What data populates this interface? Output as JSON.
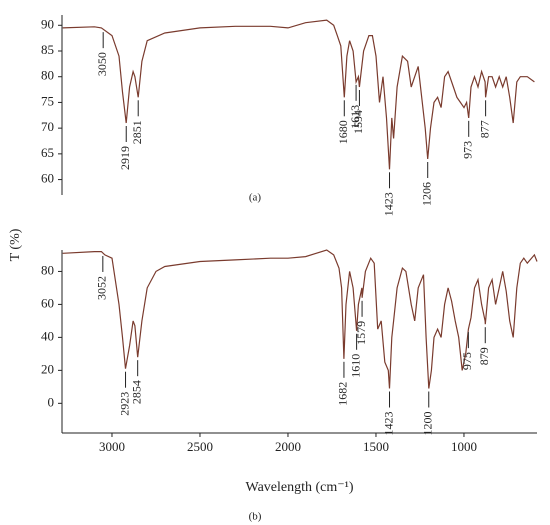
{
  "chart_data": [
    {
      "type": "line",
      "label": "(a)",
      "color": "#7a3b2e",
      "xlim": [
        3284,
        585
      ],
      "ylim": [
        57,
        92
      ],
      "yticks": [
        60,
        65,
        70,
        75,
        80,
        85,
        90
      ],
      "x": [
        3280,
        3100,
        3060,
        3000,
        2960,
        2940,
        2919,
        2900,
        2880,
        2870,
        2851,
        2830,
        2800,
        2700,
        2500,
        2300,
        2100,
        2000,
        1900,
        1780,
        1740,
        1720,
        1700,
        1680,
        1665,
        1650,
        1630,
        1613,
        1600,
        1594,
        1570,
        1540,
        1520,
        1500,
        1480,
        1460,
        1440,
        1423,
        1410,
        1400,
        1380,
        1350,
        1320,
        1300,
        1280,
        1260,
        1240,
        1220,
        1206,
        1190,
        1170,
        1150,
        1130,
        1110,
        1090,
        1060,
        1040,
        1020,
        1000,
        985,
        973,
        960,
        940,
        920,
        900,
        880,
        877,
        860,
        840,
        820,
        800,
        780,
        760,
        740,
        720,
        700,
        680,
        640,
        600
      ],
      "values": [
        89.5,
        89.7,
        89.5,
        88,
        84,
        77,
        71,
        78,
        81,
        80,
        76,
        83,
        87,
        88.5,
        89.5,
        89.8,
        89.8,
        89.5,
        90.5,
        91,
        90,
        88,
        86,
        76,
        84,
        87,
        85,
        79,
        80,
        78,
        85,
        88,
        88,
        84,
        75,
        80,
        72,
        62,
        72,
        68,
        78,
        84,
        83,
        78,
        80,
        82,
        76,
        70,
        64,
        70,
        75,
        76,
        74,
        80,
        81,
        78,
        76,
        75,
        74,
        75,
        72,
        78,
        80,
        78,
        81,
        79,
        76,
        80,
        80,
        78,
        80,
        78,
        80,
        76,
        71,
        79,
        80,
        80,
        79
      ],
      "peaks": [
        3050,
        2919,
        2851,
        1680,
        1613,
        1594,
        1423,
        1206,
        973,
        877
      ]
    },
    {
      "type": "line",
      "label": "(b)",
      "color": "#7a3b2e",
      "xlim": [
        3284,
        585
      ],
      "ylim": [
        -18,
        93
      ],
      "yticks": [
        0,
        20,
        40,
        60,
        80
      ],
      "xticks": [
        3000,
        2500,
        2000,
        1500,
        1000
      ],
      "xlabel": "Wavelength (cm⁻¹)",
      "ylabel": "T (%)",
      "x": [
        3280,
        3100,
        3060,
        3040,
        3000,
        2960,
        2940,
        2923,
        2900,
        2880,
        2870,
        2854,
        2830,
        2800,
        2750,
        2700,
        2500,
        2300,
        2100,
        2000,
        1900,
        1780,
        1740,
        1710,
        1695,
        1682,
        1670,
        1650,
        1630,
        1610,
        1600,
        1580,
        1579,
        1560,
        1530,
        1510,
        1490,
        1470,
        1450,
        1430,
        1423,
        1410,
        1400,
        1380,
        1350,
        1330,
        1300,
        1280,
        1260,
        1230,
        1215,
        1200,
        1185,
        1170,
        1150,
        1130,
        1110,
        1090,
        1070,
        1050,
        1030,
        1010,
        990,
        975,
        960,
        940,
        920,
        900,
        880,
        879,
        860,
        840,
        820,
        800,
        780,
        760,
        740,
        720,
        700,
        680,
        660,
        640,
        600,
        585
      ],
      "values": [
        91,
        92,
        92,
        90,
        88,
        60,
        40,
        21,
        35,
        50,
        47,
        28,
        50,
        70,
        80,
        83,
        86,
        87,
        88,
        88,
        89,
        93,
        90,
        82,
        70,
        27,
        60,
        80,
        70,
        44,
        60,
        70,
        64,
        80,
        88,
        85,
        45,
        50,
        25,
        20,
        9,
        40,
        50,
        70,
        82,
        80,
        60,
        50,
        70,
        78,
        40,
        9,
        20,
        40,
        45,
        40,
        60,
        70,
        62,
        50,
        40,
        20,
        30,
        45,
        52,
        70,
        75,
        60,
        50,
        48,
        70,
        75,
        60,
        70,
        80,
        68,
        50,
        40,
        70,
        85,
        88,
        85,
        90,
        86
      ],
      "peaks": [
        3052,
        2923,
        2854,
        1682,
        1610,
        1579,
        1423,
        1200,
        975,
        879
      ]
    }
  ]
}
